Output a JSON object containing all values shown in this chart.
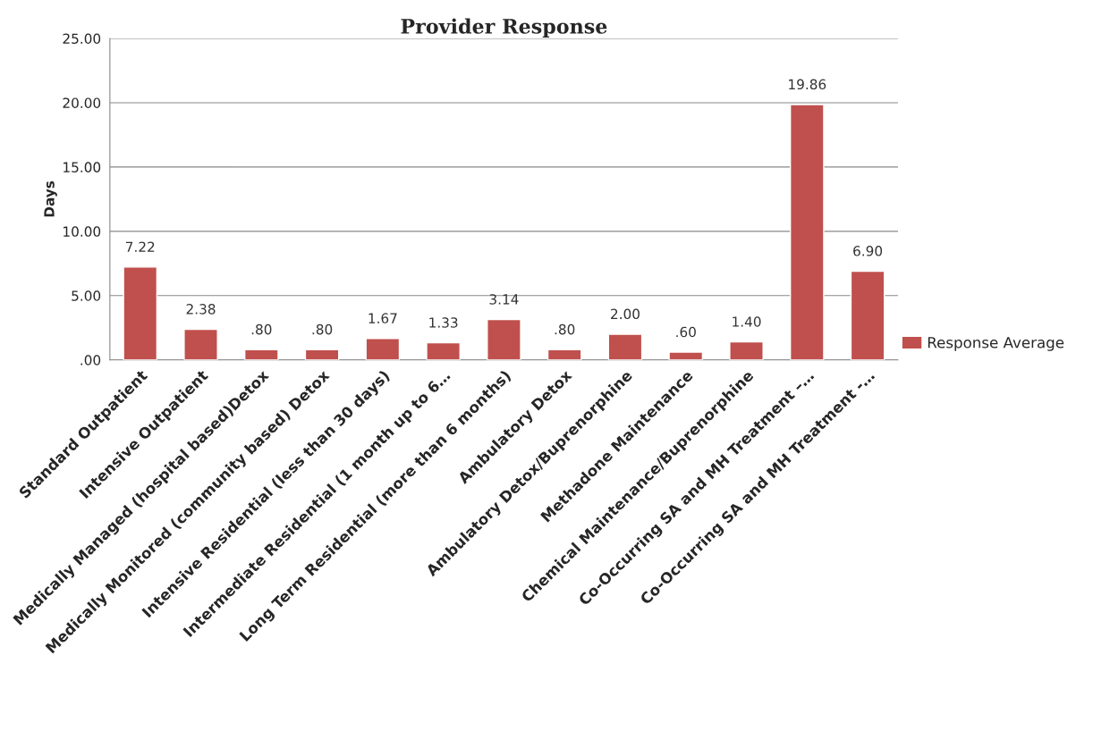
{
  "chart_data": {
    "type": "bar",
    "title": "Provider Response",
    "ylabel": "Days",
    "categories": [
      "Standard Outpatient",
      "Intensive Outpatient",
      "Medically Managed (hospital based)Detox",
      "Medically Monitored (community based) Detox",
      "Intensive Residential (less than 30 days)",
      "Intermediate Residential (1 month up to 6…",
      "Long Term Residential (more than 6 months)",
      "Ambulatory Detox",
      "Ambulatory Detox/Buprenorphine",
      "Methadone Maintenance",
      "Chemical Maintenance/Buprenorphine",
      "Co-Occurring SA and MH Treatment –…",
      "Co-Occurring SA and MH Treatment -…"
    ],
    "series": [
      {
        "name": "Response Average",
        "color": "#c0504d",
        "values": [
          7.22,
          2.38,
          0.8,
          0.8,
          1.67,
          1.33,
          3.14,
          0.8,
          2.0,
          0.6,
          1.4,
          19.86,
          6.9
        ],
        "value_labels": [
          "7.22",
          "2.38",
          ".80",
          ".80",
          "1.67",
          "1.33",
          "3.14",
          ".80",
          "2.00",
          ".60",
          "1.40",
          "19.86",
          "6.90"
        ]
      }
    ],
    "ylim": [
      0,
      25
    ],
    "yticks": [
      {
        "value": 0,
        "label": ".00"
      },
      {
        "value": 5,
        "label": "5.00"
      },
      {
        "value": 10,
        "label": "10.00"
      },
      {
        "value": 15,
        "label": "15.00"
      },
      {
        "value": 20,
        "label": "20.00"
      },
      {
        "value": 25,
        "label": "25.00"
      }
    ],
    "grid": "y",
    "legend": "right"
  }
}
